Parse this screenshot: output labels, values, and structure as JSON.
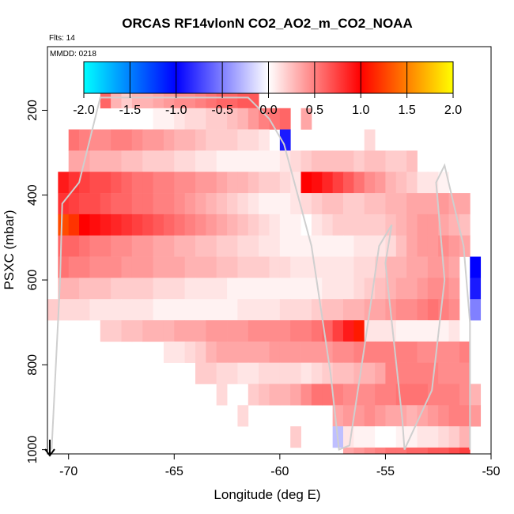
{
  "chart_data": {
    "type": "heatmap",
    "title": "ORCAS RF14vlonN CO2_AO2_m_CO2_NOAA",
    "flights_label": "Flts: 14",
    "date_label": "MMDD: 0218",
    "xlabel": "Longitude (deg E)",
    "ylabel": "PSXC (mbar)",
    "xlim": [
      -71,
      -50
    ],
    "ylim": [
      1010,
      50
    ],
    "x_ticks": [
      -70,
      -65,
      -60,
      -55,
      -50
    ],
    "x_tick_labels": [
      "-70",
      "-65",
      "-60",
      "-55",
      "-50"
    ],
    "y_ticks": [
      200,
      400,
      600,
      800,
      1000
    ],
    "y_tick_labels": [
      "200",
      "400",
      "600",
      "800",
      "1000"
    ],
    "colorbar": {
      "range": [
        -2,
        2
      ],
      "ticks": [
        -2.0,
        -1.5,
        -1.0,
        -0.5,
        0.0,
        0.5,
        1.0,
        1.5,
        2.0
      ],
      "tick_labels": [
        "-2.0",
        "-1.5",
        "-1.0",
        "-0.5",
        "0.0",
        "0.5",
        "1.0",
        "1.5",
        "2.0"
      ],
      "colors": [
        "#00ffff",
        "#0000ff",
        "#ffffff",
        "#ff0000",
        "#ffff00"
      ]
    },
    "cell_width_deg": 0.5,
    "cell_height_mbar": 50,
    "rows": [
      {
        "p": 170,
        "x0": -68.5,
        "x1": -61.0,
        "v": [
          0.6,
          0.3,
          0.2,
          0.3,
          0.3,
          0.35,
          0.4,
          0.45,
          0.45,
          0.5,
          0.55,
          0.6,
          0.6,
          0.65,
          0.65
        ]
      },
      {
        "p": 220,
        "x0": -66.0,
        "x1": -59.5,
        "v": [
          0.05,
          0.05,
          0.1,
          0.15,
          0.15,
          0.2,
          0.2,
          0.25,
          0.3,
          0.4,
          0.5,
          0.55,
          0.6
        ]
      },
      {
        "p": 220,
        "x0": -59.0,
        "x1": -58.5,
        "v": [
          0.35
        ]
      },
      {
        "p": 270,
        "x0": -70.0,
        "x1": -60.5,
        "v": [
          0.55,
          0.5,
          0.45,
          0.45,
          0.5,
          0.5,
          0.45,
          0.4,
          0.4,
          0.35,
          0.3,
          0.3,
          0.25,
          0.2,
          0.2,
          0.2,
          0.15,
          0.15,
          0.1
        ]
      },
      {
        "p": 270,
        "x0": -60.0,
        "x1": -59.5,
        "v": [
          -0.9
        ]
      },
      {
        "p": 270,
        "x0": -56.0,
        "x1": -55.5,
        "v": [
          0.15
        ]
      },
      {
        "p": 320,
        "x0": -70.0,
        "x1": -60.0,
        "v": [
          0.35,
          0.35,
          0.3,
          0.3,
          0.3,
          0.25,
          0.25,
          0.2,
          0.2,
          0.2,
          0.15,
          0.15,
          0.1,
          0.1,
          0.05,
          0.05,
          0.05,
          0.05,
          0.05,
          0.05
        ]
      },
      {
        "p": 320,
        "x0": -60.0,
        "x1": -54.0,
        "v": [
          0.1,
          0.15,
          0.2,
          0.25,
          0.25,
          0.25,
          0.25,
          0.2,
          0.25,
          0.25,
          0.2,
          0.2
        ]
      },
      {
        "p": 320,
        "x0": -54.0,
        "x1": -53.5,
        "v": [
          0.25
        ]
      },
      {
        "p": 370,
        "x0": -70.5,
        "x1": -59.0,
        "v": [
          0.9,
          0.8,
          0.75,
          0.7,
          0.7,
          0.65,
          0.6,
          0.55,
          0.55,
          0.5,
          0.5,
          0.45,
          0.45,
          0.4,
          0.4,
          0.35,
          0.3,
          0.3,
          0.25,
          0.2,
          0.2,
          0.15,
          0.1
        ]
      },
      {
        "p": 370,
        "x0": -59.0,
        "x1": -52.0,
        "v": [
          1.0,
          0.95,
          0.85,
          0.75,
          0.65,
          0.55,
          0.45,
          0.4,
          0.3,
          0.25,
          0.2,
          0.1,
          0.1,
          0.05
        ]
      },
      {
        "p": 420,
        "x0": -70.5,
        "x1": -51.0,
        "v": [
          0.8,
          0.75,
          0.7,
          0.7,
          0.65,
          0.6,
          0.6,
          0.55,
          0.55,
          0.5,
          0.5,
          0.45,
          0.4,
          0.35,
          0.3,
          0.25,
          0.2,
          0.15,
          0.1,
          0.05,
          0.05,
          0.05,
          0.1,
          0.15,
          0.2,
          0.25,
          0.25,
          0.2,
          0.2,
          0.25,
          0.25,
          0.3,
          0.3,
          0.35,
          0.35,
          0.35,
          0.4,
          0.35,
          0.35
        ]
      },
      {
        "p": 470,
        "x0": -70.5,
        "x1": -51.0,
        "v": [
          1.3,
          1.2,
          1.0,
          0.95,
          0.9,
          0.85,
          0.8,
          0.75,
          0.7,
          0.65,
          0.6,
          0.55,
          0.5,
          0.45,
          0.4,
          0.35,
          0.3,
          0.25,
          0.2,
          0.15,
          0.1,
          0.05,
          0.05,
          0.0,
          0.1,
          0.15,
          0.2,
          0.2,
          0.2,
          0.2,
          0.2,
          0.25,
          0.3,
          0.35,
          0.4,
          0.4,
          0.35,
          0.3,
          0.25
        ]
      },
      {
        "p": 520,
        "x0": -70.5,
        "x1": -51.0,
        "v": [
          0.6,
          0.6,
          0.55,
          0.5,
          0.5,
          0.45,
          0.45,
          0.4,
          0.4,
          0.35,
          0.35,
          0.3,
          0.3,
          0.25,
          0.25,
          0.2,
          0.2,
          0.15,
          0.15,
          0.1,
          0.1,
          0.05,
          0.05,
          0.05,
          0.05,
          0.05,
          0.05,
          0.05,
          0.1,
          0.1,
          0.1,
          0.15,
          0.25,
          0.35,
          0.4,
          0.4,
          0.45,
          0.4,
          0.35
        ]
      },
      {
        "p": 570,
        "x0": -70.5,
        "x1": -51.5,
        "v": [
          0.55,
          0.5,
          0.5,
          0.45,
          0.45,
          0.45,
          0.4,
          0.4,
          0.4,
          0.35,
          0.35,
          0.35,
          0.3,
          0.3,
          0.3,
          0.25,
          0.25,
          0.2,
          0.2,
          0.2,
          0.15,
          0.15,
          0.1,
          0.1,
          0.1,
          0.1,
          0.1,
          0.1,
          0.15,
          0.15,
          0.2,
          0.3,
          0.3,
          0.35,
          0.35,
          0.4,
          0.4,
          0.35
        ]
      },
      {
        "p": 570,
        "x0": -51.0,
        "x1": -50.5,
        "v": [
          -1.0
        ]
      },
      {
        "p": 620,
        "x0": -70.5,
        "x1": -51.5,
        "v": [
          0.3,
          0.3,
          0.25,
          0.25,
          0.25,
          0.2,
          0.2,
          0.2,
          0.2,
          0.15,
          0.15,
          0.15,
          0.1,
          0.1,
          0.1,
          0.1,
          0.05,
          0.05,
          0.05,
          0.05,
          0.05,
          0.05,
          0.05,
          0.05,
          0.05,
          0.1,
          0.1,
          0.1,
          0.15,
          0.2,
          0.25,
          0.3,
          0.35,
          0.35,
          0.4,
          0.45,
          0.45,
          0.4
        ]
      },
      {
        "p": 620,
        "x0": -51.0,
        "x1": -50.5,
        "v": [
          -0.9
        ]
      },
      {
        "p": 670,
        "x0": -70.5,
        "x1": -51.5,
        "v": [
          0.15,
          0.15,
          0.15,
          0.1,
          0.1,
          0.1,
          0.1,
          0.1,
          0.1,
          0.05,
          0.05,
          0.05,
          0.05,
          0.05,
          0.05,
          0.05,
          0.05,
          0.1,
          0.1,
          0.1,
          0.1,
          0.15,
          0.15,
          0.15,
          0.2,
          0.25,
          0.25,
          0.3,
          0.3,
          0.35,
          0.35,
          0.4,
          0.45,
          0.45,
          0.5,
          0.55,
          0.5,
          0.45
        ]
      },
      {
        "p": 670,
        "x0": -71.0,
        "x1": -70.5,
        "v": [
          0.2
        ]
      },
      {
        "p": 670,
        "x0": -51.0,
        "x1": -50.5,
        "v": [
          -0.5
        ]
      },
      {
        "p": 720,
        "x0": -68.5,
        "x1": -56.0,
        "v": [
          0.2,
          0.2,
          0.25,
          0.25,
          0.3,
          0.3,
          0.3,
          0.35,
          0.35,
          0.35,
          0.4,
          0.4,
          0.4,
          0.4,
          0.45,
          0.45,
          0.45,
          0.45,
          0.5,
          0.5,
          0.55,
          0.6,
          0.75,
          0.9,
          1.1
        ]
      },
      {
        "p": 720,
        "x0": -56.0,
        "x1": -51.5,
        "v": [
          0.1,
          0.1,
          0.1,
          0.05,
          0.05,
          0.05,
          0.05,
          0.05,
          0.1
        ]
      },
      {
        "p": 770,
        "x0": -65.5,
        "x1": -51.0,
        "v": [
          0.1,
          0.1,
          0.15,
          0.2,
          0.3,
          0.35,
          0.35,
          0.35,
          0.35,
          0.35,
          0.4,
          0.4,
          0.4,
          0.4,
          0.4,
          0.4,
          0.45,
          0.45,
          0.5,
          0.5,
          0.5,
          0.5,
          0.5,
          0.5,
          0.45,
          0.45,
          0.45,
          0.45,
          0.5
        ]
      },
      {
        "p": 820,
        "x0": -64.0,
        "x1": -51.0,
        "v": [
          0.2,
          0.2,
          0.15,
          0.15,
          0.1,
          0.1,
          0.15,
          0.15,
          0.15,
          0.15,
          0.1,
          0.15,
          0.2,
          0.25,
          0.25,
          0.3,
          0.3,
          0.35,
          0.5,
          0.5,
          0.5,
          0.5,
          0.5,
          0.45,
          0.45,
          0.45
        ]
      },
      {
        "p": 870,
        "x0": -61.5,
        "x1": -50.5,
        "v": [
          0.2,
          0.25,
          0.3,
          0.3,
          0.35,
          0.45,
          0.55,
          0.55,
          0.5,
          0.45,
          0.45,
          0.45,
          0.5,
          0.5,
          0.55,
          0.55,
          0.55,
          0.5,
          0.5,
          0.5,
          0.45,
          0.3
        ]
      },
      {
        "p": 870,
        "x0": -63.0,
        "x1": -62.5,
        "v": [
          0.15
        ]
      },
      {
        "p": 920,
        "x0": -57.5,
        "x1": -50.5,
        "v": [
          0.35,
          0.4,
          0.4,
          0.45,
          0.4,
          0.35,
          0.35,
          0.3,
          0.35,
          0.4,
          0.45,
          0.5,
          0.5,
          0.4
        ]
      },
      {
        "p": 920,
        "x0": -62.0,
        "x1": -61.5,
        "v": [
          0.15
        ]
      },
      {
        "p": 970,
        "x0": -59.5,
        "x1": -59.0,
        "v": [
          0.2
        ]
      },
      {
        "p": 970,
        "x0": -57.5,
        "x1": -57.0,
        "v": [
          -0.25
        ]
      },
      {
        "p": 970,
        "x0": -57.0,
        "x1": -51.0,
        "v": [
          0.1,
          0.05,
          0.05,
          0.0,
          0.0,
          0.05,
          0.05,
          0.1,
          0.1,
          0.15,
          0.2,
          0.3
        ]
      },
      {
        "p": 1020,
        "x0": -57.0,
        "x1": -51.0,
        "v": [
          0.35,
          0.4,
          0.45,
          0.5,
          0.55,
          0.55,
          0.6,
          0.6,
          0.65,
          0.65,
          0.7,
          0.75
        ]
      }
    ],
    "flight_track": [
      [
        -70.8,
        1000
      ],
      [
        -70.4,
        600
      ],
      [
        -70.3,
        420
      ],
      [
        -69.5,
        370
      ],
      [
        -68.5,
        170
      ],
      [
        -61.5,
        170
      ],
      [
        -60.5,
        220
      ],
      [
        -59.8,
        280
      ],
      [
        -58.5,
        520
      ],
      [
        -57.6,
        820
      ],
      [
        -57.2,
        1000
      ],
      [
        -56.7,
        990
      ],
      [
        -56.0,
        760
      ],
      [
        -55.3,
        520
      ],
      [
        -54.7,
        470
      ],
      [
        -55.0,
        560
      ],
      [
        -54.2,
        930
      ],
      [
        -54.1,
        1000
      ],
      [
        -52.8,
        860
      ],
      [
        -52.2,
        600
      ],
      [
        -52.6,
        370
      ],
      [
        -52.2,
        330
      ],
      [
        -51.3,
        520
      ],
      [
        -51.0,
        700
      ],
      [
        -51.0,
        1000
      ]
    ],
    "direction_marker": "arrow-down"
  }
}
